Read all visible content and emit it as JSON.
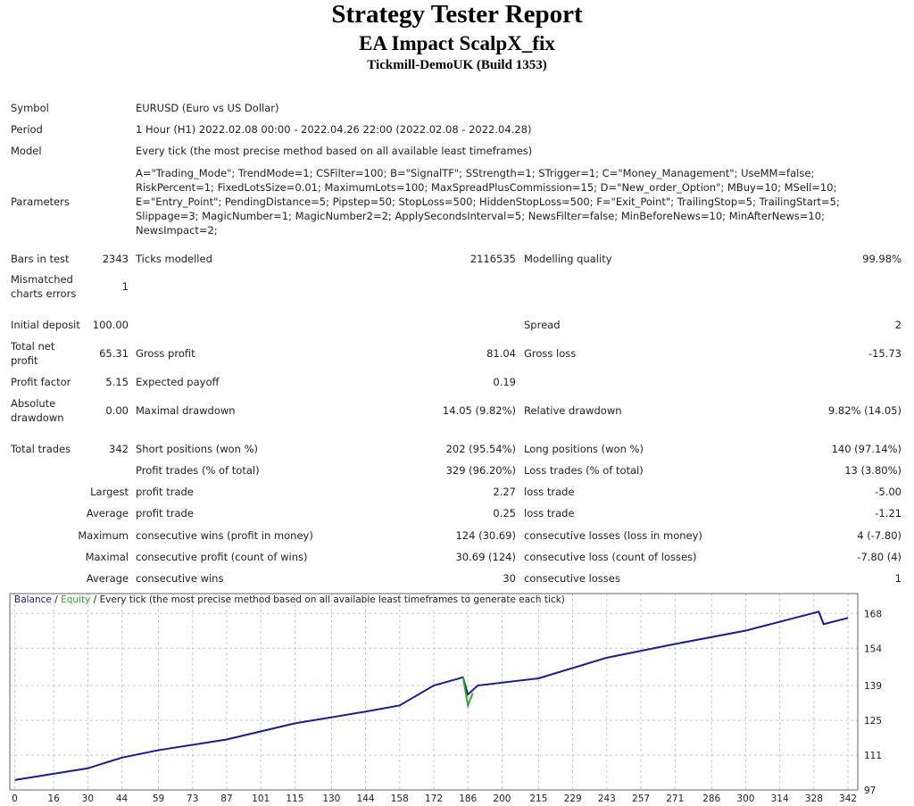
{
  "header": {
    "title": "Strategy Tester Report",
    "subtitle": "EA Impact ScalpX_fix",
    "server": "Tickmill-DemoUK (Build 1353)"
  },
  "info": [
    {
      "label": "Symbol",
      "value": [
        "EURUSD (Euro vs US Dollar)"
      ]
    },
    {
      "label": "Period",
      "value": [
        "1 Hour (H1) 2022.02.08 00:00 - 2022.04.26 22:00 (2022.02.08 - 2022.04.28)"
      ]
    },
    {
      "label": "Model",
      "value": [
        "Every tick (the most precise method based on all available least timeframes)"
      ]
    },
    {
      "label": "Parameters",
      "value": [
        "A=\"Trading_Mode\"; TrendMode=1; CSFilter=100; B=\"SignalTF\"; SStrength=1; STrigger=1; C=\"Money_Management\"; UseMM=false;",
        "RiskPercent=1; FixedLotsSize=0.01; MaximumLots=100; MaxSpreadPlusCommission=15; D=\"New_order_Option\"; MBuy=10; MSell=10;",
        "E=\"Entry_Point\"; PendingDistance=5; Pipstep=50; StopLoss=500; HiddenStopLoss=500; F=\"Exit_Point\"; TrailingStop=5; TrailingStart=5;",
        "Slippage=3; MagicNumber=1; MagicNumber2=2; ApplySecondsInterval=5; NewsFilter=false; MinBeforeNews=10; MinAfterNews=10;",
        "NewsImpact=2;"
      ]
    }
  ],
  "stats": [
    [
      [
        "Bars in test",
        "2343",
        "Ticks modelled",
        "2116535",
        "Modelling quality",
        "99.98%"
      ],
      [
        "Mismatched charts errors",
        "1",
        null,
        null,
        null,
        null
      ]
    ],
    [
      [
        "Initial deposit",
        "100.00",
        null,
        null,
        "Spread",
        "2"
      ],
      [
        "Total net profit",
        "65.31",
        "Gross profit",
        "81.04",
        "Gross loss",
        "-15.73"
      ],
      [
        "Profit factor",
        "5.15",
        "Expected payoff",
        "0.19",
        null,
        null
      ],
      [
        "Absolute drawdown",
        "0.00",
        "Maximal drawdown",
        "14.05 (9.82%)",
        "Relative drawdown",
        "9.82% (14.05)"
      ]
    ],
    [
      [
        "Total trades",
        "342",
        "Short positions (won %)",
        "202 (95.54%)",
        "Long positions (won %)",
        "140 (97.14%)"
      ],
      [
        null,
        null,
        "Profit trades (% of total)",
        "329 (96.20%)",
        "Loss trades (% of total)",
        "13 (3.80%)"
      ],
      [
        null,
        "Largest",
        "profit trade",
        "2.27",
        "loss trade",
        "-5.00"
      ],
      [
        null,
        "Average",
        "profit trade",
        "0.25",
        "loss trade",
        "-1.21"
      ],
      [
        null,
        "Maximum",
        "consecutive wins (profit in money)",
        "124 (30.69)",
        "consecutive losses (loss in money)",
        "4 (-7.80)"
      ],
      [
        null,
        "Maximal",
        "consecutive profit (count of wins)",
        "30.69 (124)",
        "consecutive loss (count of losses)",
        "-7.80 (4)"
      ],
      [
        null,
        "Average",
        "consecutive wins",
        "30",
        "consecutive losses",
        "1"
      ]
    ]
  ],
  "chart_data": {
    "type": "line",
    "legend_separator": "/",
    "legend_note": "Every tick (the most precise method based on all available least timeframes to generate each tick)",
    "series": [
      {
        "name": "Balance",
        "color": "#1c1c8e",
        "x": [
          0,
          30,
          44,
          59,
          87,
          115,
          144,
          158,
          172,
          184,
          186,
          190,
          215,
          243,
          271,
          300,
          330,
          332,
          342
        ],
        "values": [
          101,
          105.7,
          110,
          113,
          117.3,
          123.8,
          128.5,
          131,
          139,
          142.3,
          135.4,
          139,
          141.9,
          150.2,
          155.7,
          161.1,
          168.7,
          163.7,
          166.2
        ]
      },
      {
        "name": "Equity",
        "color": "#2eaa2e",
        "x": [
          184,
          186,
          188
        ],
        "values": [
          142.3,
          131,
          136
        ]
      }
    ],
    "xlim": [
      -2,
      346
    ],
    "ylim": [
      97,
      176
    ],
    "xticks": [
      0,
      16,
      30,
      44,
      59,
      73,
      87,
      101,
      115,
      130,
      144,
      158,
      172,
      186,
      200,
      215,
      229,
      243,
      257,
      271,
      286,
      300,
      314,
      328,
      342
    ],
    "yticks": [
      97,
      111,
      125,
      139,
      154,
      168
    ],
    "grid": true
  }
}
